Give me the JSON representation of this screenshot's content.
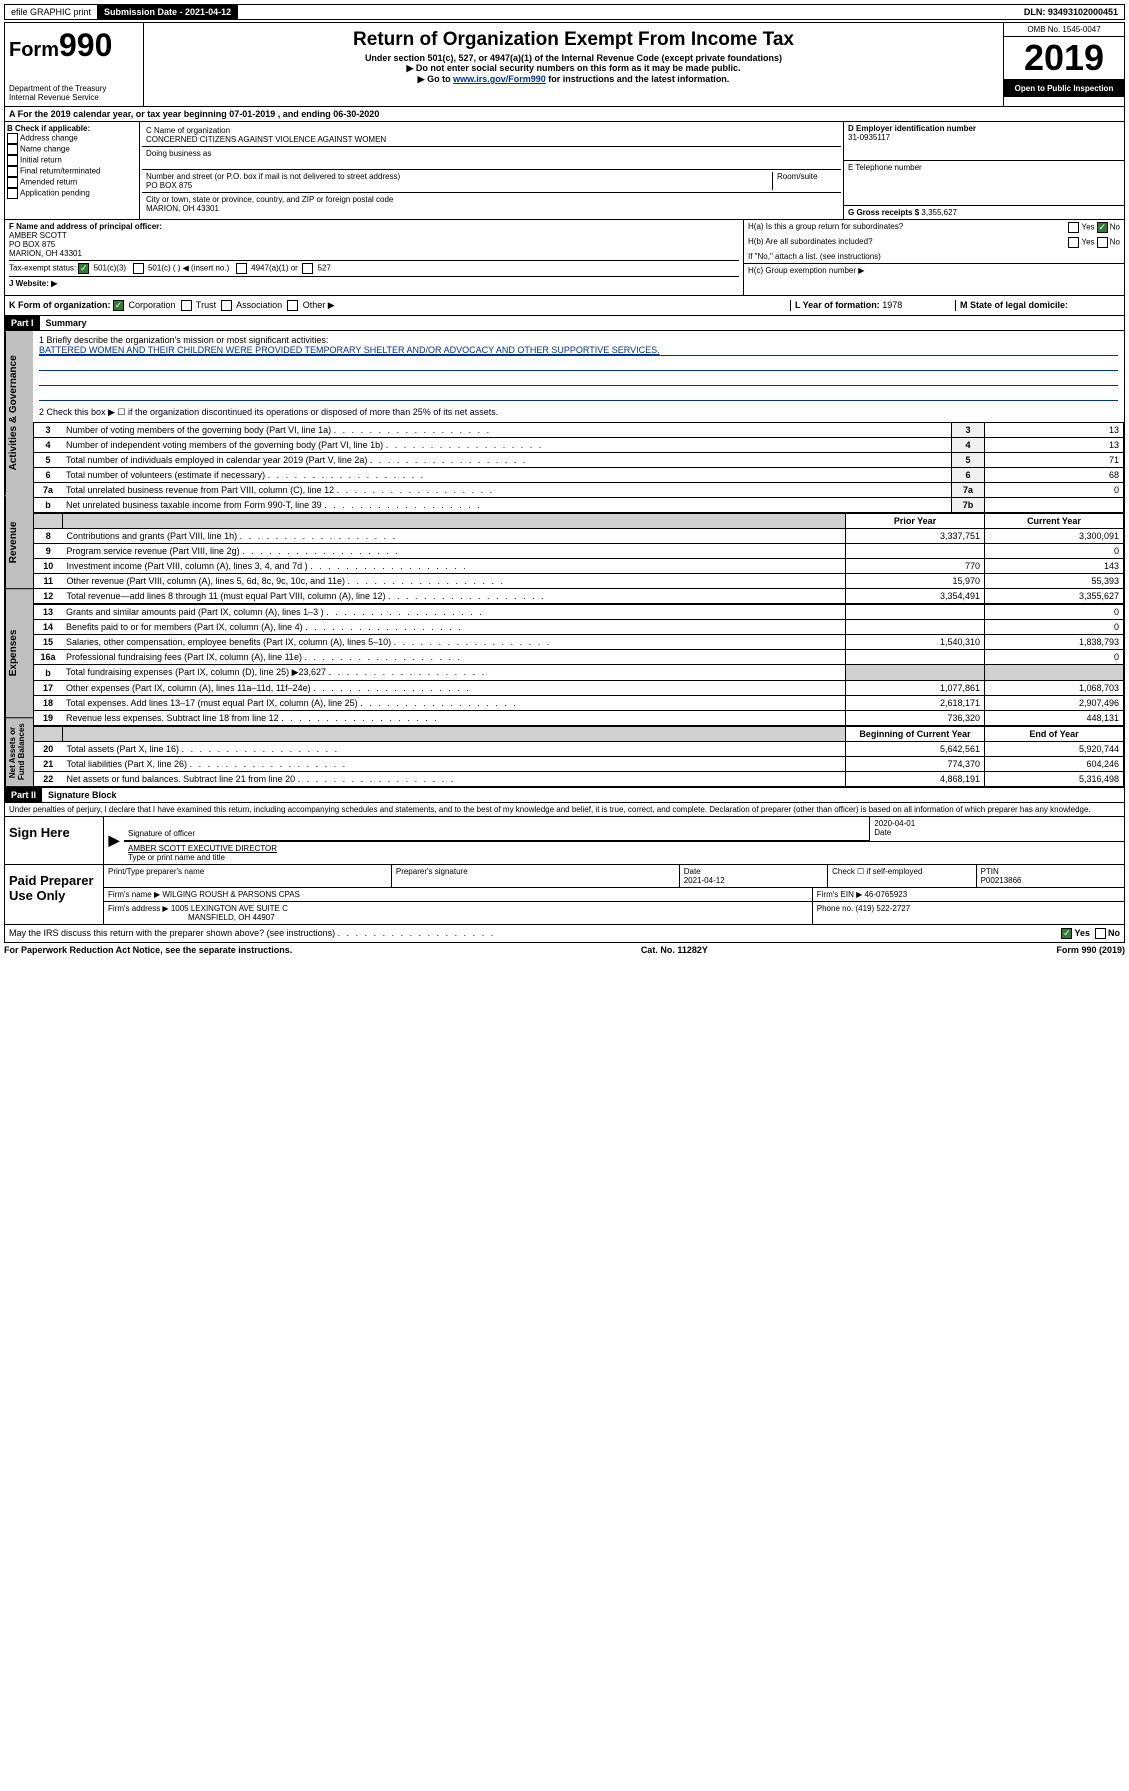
{
  "top": {
    "efile": "efile GRAPHIC print",
    "submission_label": "Submission Date - 2021-04-12",
    "dln": "DLN: 93493102000451"
  },
  "header": {
    "form_prefix": "Form",
    "form_num": "990",
    "dept": "Department of the Treasury",
    "irs": "Internal Revenue Service",
    "title": "Return of Organization Exempt From Income Tax",
    "sub1": "Under section 501(c), 527, or 4947(a)(1) of the Internal Revenue Code (except private foundations)",
    "sub2": "▶ Do not enter social security numbers on this form as it may be made public.",
    "sub3_pre": "▶ Go to ",
    "sub3_link": "www.irs.gov/Form990",
    "sub3_post": " for instructions and the latest information.",
    "omb": "OMB No. 1545-0047",
    "year": "2019",
    "open": "Open to Public Inspection"
  },
  "period": {
    "text": "A For the 2019 calendar year, or tax year beginning 07-01-2019    , and ending 06-30-2020"
  },
  "boxB": {
    "label": "B Check if applicable:",
    "items": [
      "Address change",
      "Name change",
      "Initial return",
      "Final return/terminated",
      "Amended return",
      "Application pending"
    ]
  },
  "boxC": {
    "name_label": "C Name of organization",
    "name": "CONCERNED CITIZENS AGAINST VIOLENCE AGAINST WOMEN",
    "dba_label": "Doing business as",
    "addr_label": "Number and street (or P.O. box if mail is not delivered to street address)",
    "room_label": "Room/suite",
    "addr": "PO BOX 875",
    "city_label": "City or town, state or province, country, and ZIP or foreign postal code",
    "city": "MARION, OH  43301"
  },
  "boxD": {
    "label": "D Employer identification number",
    "ein": "31-0935117"
  },
  "boxE": {
    "label": "E Telephone number"
  },
  "boxG": {
    "label": "G Gross receipts $",
    "val": "3,355,627"
  },
  "boxF": {
    "label": "F  Name and address of principal officer:",
    "name": "AMBER SCOTT",
    "addr1": "PO BOX 875",
    "addr2": "MARION, OH  43301"
  },
  "boxH": {
    "ha": "H(a)  Is this a group return for subordinates?",
    "hb": "H(b)  Are all subordinates included?",
    "hb_note": "If \"No,\" attach a list. (see instructions)",
    "hc": "H(c)  Group exemption number ▶",
    "yes": "Yes",
    "no": "No"
  },
  "taxExempt": {
    "label": "Tax-exempt status:",
    "opts": [
      "501(c)(3)",
      "501(c) (  ) ◀ (insert no.)",
      "4947(a)(1) or",
      "527"
    ]
  },
  "boxJ": {
    "label": "J   Website: ▶"
  },
  "boxK": {
    "label": "K Form of organization:",
    "opts": [
      "Corporation",
      "Trust",
      "Association",
      "Other ▶"
    ]
  },
  "boxL": {
    "label": "L Year of formation:",
    "val": "1978"
  },
  "boxM": {
    "label": "M State of legal domicile:"
  },
  "part1": {
    "header": "Part I",
    "title": "Summary",
    "line1_label": "1   Briefly describe the organization's mission or most significant activities:",
    "line1_text": "BATTERED WOMEN AND THEIR CHILDREN WERE PROVIDED TEMPORARY SHELTER AND/OR ADVOCACY AND OTHER SUPPORTIVE SERVICES.",
    "line2": "2    Check this box ▶ ☐  if the organization discontinued its operations or disposed of more than 25% of its net assets.",
    "vert_gov": "Activities & Governance",
    "vert_rev": "Revenue",
    "vert_exp": "Expenses",
    "vert_net": "Net Assets or Fund Balances",
    "rows_gov": [
      {
        "n": "3",
        "desc": "Number of voting members of the governing body (Part VI, line 1a)",
        "k": "3",
        "v": "13"
      },
      {
        "n": "4",
        "desc": "Number of independent voting members of the governing body (Part VI, line 1b)",
        "k": "4",
        "v": "13"
      },
      {
        "n": "5",
        "desc": "Total number of individuals employed in calendar year 2019 (Part V, line 2a)",
        "k": "5",
        "v": "71"
      },
      {
        "n": "6",
        "desc": "Total number of volunteers (estimate if necessary)",
        "k": "6",
        "v": "68"
      },
      {
        "n": "7a",
        "desc": "Total unrelated business revenue from Part VIII, column (C), line 12",
        "k": "7a",
        "v": "0"
      },
      {
        "n": "b",
        "desc": "Net unrelated business taxable income from Form 990-T, line 39",
        "k": "7b",
        "v": ""
      }
    ],
    "col_prior": "Prior Year",
    "col_current": "Current Year",
    "col_beg": "Beginning of Current Year",
    "col_end": "End of Year",
    "rows_rev": [
      {
        "n": "8",
        "desc": "Contributions and grants (Part VIII, line 1h)",
        "p": "3,337,751",
        "c": "3,300,091"
      },
      {
        "n": "9",
        "desc": "Program service revenue (Part VIII, line 2g)",
        "p": "",
        "c": "0"
      },
      {
        "n": "10",
        "desc": "Investment income (Part VIII, column (A), lines 3, 4, and 7d )",
        "p": "770",
        "c": "143"
      },
      {
        "n": "11",
        "desc": "Other revenue (Part VIII, column (A), lines 5, 6d, 8c, 9c, 10c, and 11e)",
        "p": "15,970",
        "c": "55,393"
      },
      {
        "n": "12",
        "desc": "Total revenue—add lines 8 through 11 (must equal Part VIII, column (A), line 12)",
        "p": "3,354,491",
        "c": "3,355,627"
      }
    ],
    "rows_exp": [
      {
        "n": "13",
        "desc": "Grants and similar amounts paid (Part IX, column (A), lines 1–3 )",
        "p": "",
        "c": "0"
      },
      {
        "n": "14",
        "desc": "Benefits paid to or for members (Part IX, column (A), line 4)",
        "p": "",
        "c": "0"
      },
      {
        "n": "15",
        "desc": "Salaries, other compensation, employee benefits (Part IX, column (A), lines 5–10)",
        "p": "1,540,310",
        "c": "1,838,793"
      },
      {
        "n": "16a",
        "desc": "Professional fundraising fees (Part IX, column (A), line 11e)",
        "p": "",
        "c": "0"
      },
      {
        "n": "b",
        "desc": "Total fundraising expenses (Part IX, column (D), line 25) ▶23,627",
        "p": "SHADE",
        "c": "SHADE"
      },
      {
        "n": "17",
        "desc": "Other expenses (Part IX, column (A), lines 11a–11d, 11f–24e)",
        "p": "1,077,861",
        "c": "1,068,703"
      },
      {
        "n": "18",
        "desc": "Total expenses. Add lines 13–17 (must equal Part IX, column (A), line 25)",
        "p": "2,618,171",
        "c": "2,907,496"
      },
      {
        "n": "19",
        "desc": "Revenue less expenses. Subtract line 18 from line 12",
        "p": "736,320",
        "c": "448,131"
      }
    ],
    "rows_net": [
      {
        "n": "20",
        "desc": "Total assets (Part X, line 16)",
        "p": "5,642,561",
        "c": "5,920,744"
      },
      {
        "n": "21",
        "desc": "Total liabilities (Part X, line 26)",
        "p": "774,370",
        "c": "604,246"
      },
      {
        "n": "22",
        "desc": "Net assets or fund balances. Subtract line 21 from line 20",
        "p": "4,868,191",
        "c": "5,316,498"
      }
    ]
  },
  "part2": {
    "header": "Part II",
    "title": "Signature Block",
    "perjury": "Under penalties of perjury, I declare that I have examined this return, including accompanying schedules and statements, and to the best of my knowledge and belief, it is true, correct, and complete. Declaration of preparer (other than officer) is based on all information of which preparer has any knowledge.",
    "sign_here": "Sign Here",
    "sig_officer": "Signature of officer",
    "date_val": "2020-04-01",
    "date_label": "Date",
    "name_title": "AMBER SCOTT  EXECUTIVE DIRECTOR",
    "name_label": "Type or print name and title",
    "paid": "Paid Preparer Use Only",
    "prep_name_label": "Print/Type preparer's name",
    "prep_sig_label": "Preparer's signature",
    "prep_date_label": "Date",
    "prep_date": "2021-04-12",
    "check_self": "Check ☐ if self-employed",
    "ptin_label": "PTIN",
    "ptin": "P00213866",
    "firm_name_label": "Firm's name    ▶",
    "firm_name": "WILGING ROUSH & PARSONS CPAS",
    "firm_ein_label": "Firm's EIN ▶",
    "firm_ein": "46-0765923",
    "firm_addr_label": "Firm's address ▶",
    "firm_addr1": "1005 LEXINGTON AVE SUITE C",
    "firm_addr2": "MANSFIELD, OH  44907",
    "phone_label": "Phone no.",
    "phone": "(419) 522-2727",
    "discuss": "May the IRS discuss this return with the preparer shown above? (see instructions)"
  },
  "footer": {
    "paperwork": "For Paperwork Reduction Act Notice, see the separate instructions.",
    "cat": "Cat. No. 11282Y",
    "form": "Form 990 (2019)"
  }
}
